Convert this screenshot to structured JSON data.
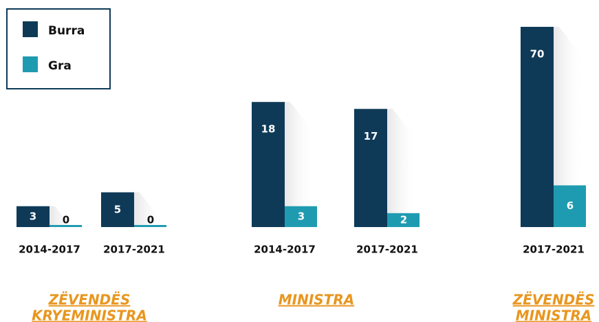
{
  "chart_data": {
    "type": "bar",
    "series": [
      {
        "name": "Burra",
        "color": "#0e3a57",
        "values": [
          [
            3,
            5
          ],
          [
            18,
            17
          ],
          [
            70
          ]
        ]
      },
      {
        "name": "Gra",
        "color": "#1f9bb1",
        "values": [
          [
            0,
            0
          ],
          [
            3,
            2
          ],
          [
            6
          ]
        ]
      }
    ],
    "categories": [
      [
        "2014-2017",
        "2017-2021"
      ],
      [
        "2014-2017",
        "2017-2021"
      ],
      [
        "2017-2021"
      ]
    ],
    "group_labels": [
      [
        "ZËVENDËS",
        "KRYEMINISTRA"
      ],
      [
        "MINISTRA"
      ],
      [
        "ZËVENDËS",
        "MINISTRA"
      ]
    ],
    "group_label_color": "#e8961e"
  }
}
